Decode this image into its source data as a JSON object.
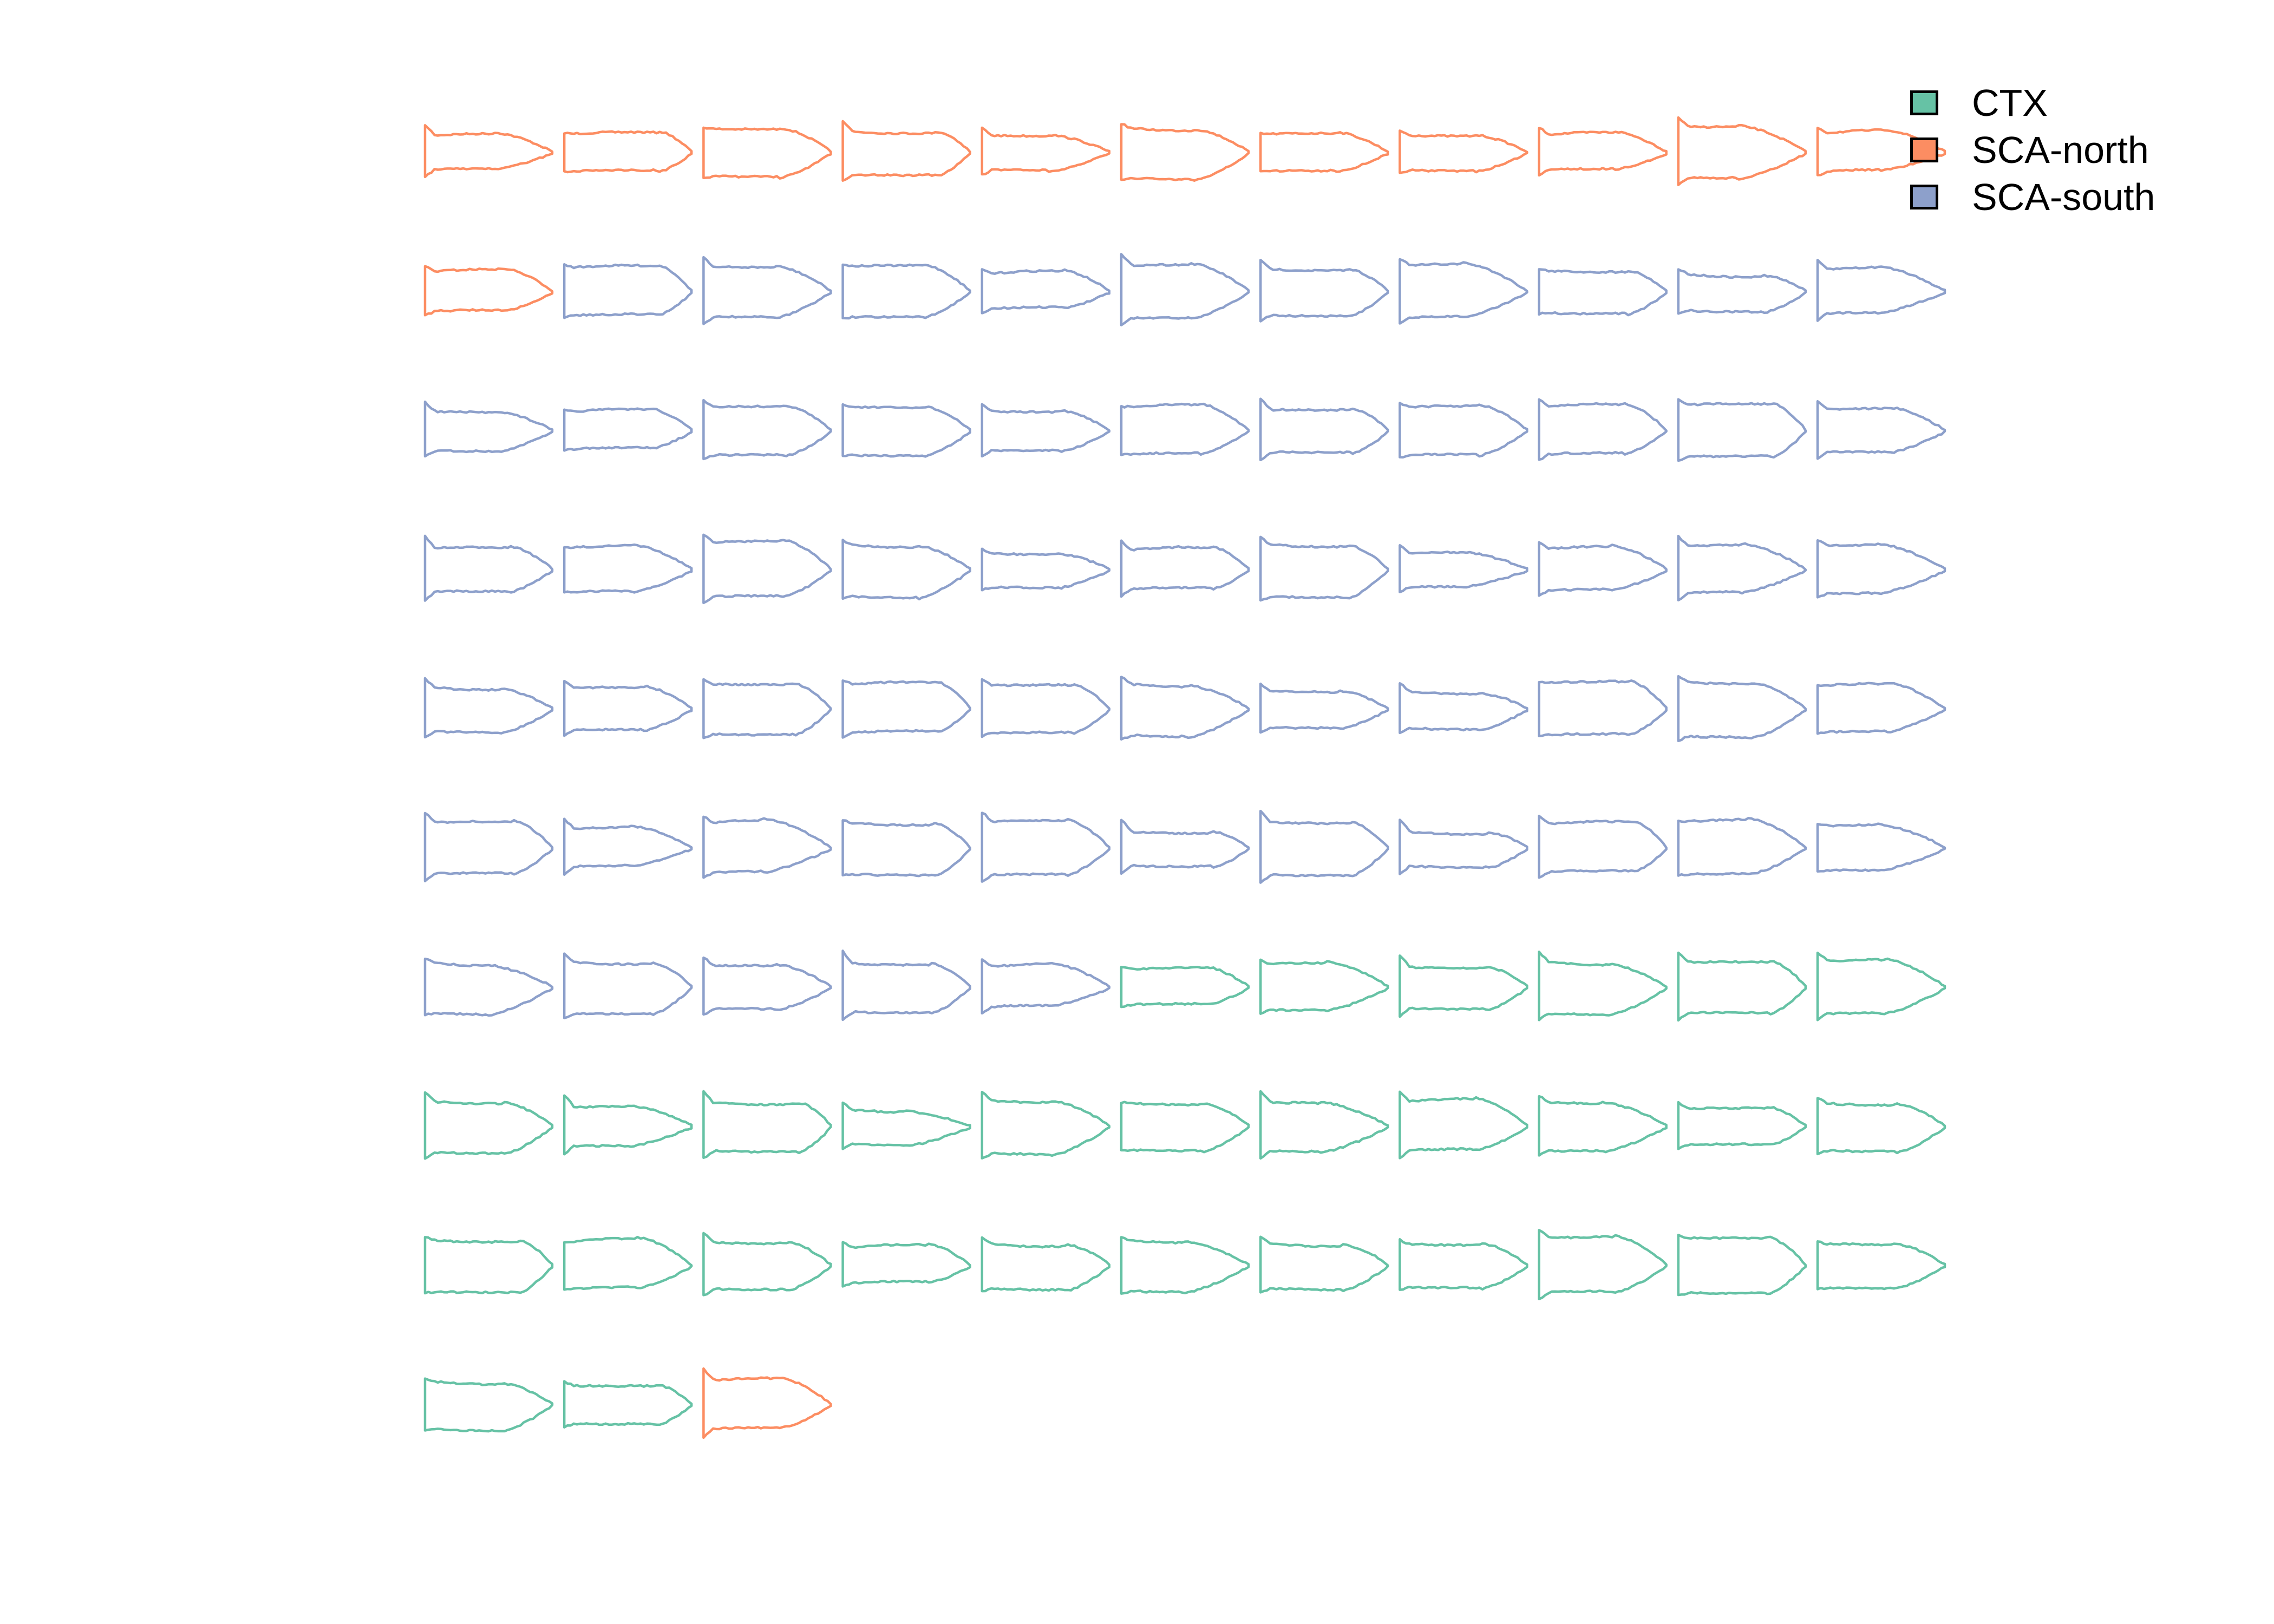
{
  "groups": [
    {
      "name": "CTX",
      "color": "#66c2a5"
    },
    {
      "name": "SCA-north",
      "color": "#fc8d62"
    },
    {
      "name": "SCA-south",
      "color": "#8da0cb"
    }
  ],
  "outlines": [
    "SCA-north",
    "SCA-north",
    "SCA-north",
    "SCA-north",
    "SCA-north",
    "SCA-north",
    "SCA-north",
    "SCA-north",
    "SCA-north",
    "SCA-north",
    "SCA-north",
    "SCA-north",
    "SCA-south",
    "SCA-south",
    "SCA-south",
    "SCA-south",
    "SCA-south",
    "SCA-south",
    "SCA-south",
    "SCA-south",
    "SCA-south",
    "SCA-south",
    "SCA-south",
    "SCA-south",
    "SCA-south",
    "SCA-south",
    "SCA-south",
    "SCA-south",
    "SCA-south",
    "SCA-south",
    "SCA-south",
    "SCA-south",
    "SCA-south",
    "SCA-south",
    "SCA-south",
    "SCA-south",
    "SCA-south",
    "SCA-south",
    "SCA-south",
    "SCA-south",
    "SCA-south",
    "SCA-south",
    "SCA-south",
    "SCA-south",
    "SCA-south",
    "SCA-south",
    "SCA-south",
    "SCA-south",
    "SCA-south",
    "SCA-south",
    "SCA-south",
    "SCA-south",
    "SCA-south",
    "SCA-south",
    "SCA-south",
    "SCA-south",
    "SCA-south",
    "SCA-south",
    "SCA-south",
    "SCA-south",
    "SCA-south",
    "SCA-south",
    "SCA-south",
    "SCA-south",
    "SCA-south",
    "SCA-south",
    "SCA-south",
    "SCA-south",
    "SCA-south",
    "SCA-south",
    "SCA-south",
    "CTX",
    "CTX",
    "CTX",
    "CTX",
    "CTX",
    "CTX",
    "CTX",
    "CTX",
    "CTX",
    "CTX",
    "CTX",
    "CTX",
    "CTX",
    "CTX",
    "CTX",
    "CTX",
    "CTX",
    "CTX",
    "CTX",
    "CTX",
    "CTX",
    "CTX",
    "CTX",
    "CTX",
    "CTX",
    "CTX",
    "CTX",
    "CTX",
    "CTX",
    "CTX",
    "SCA-north"
  ]
}
